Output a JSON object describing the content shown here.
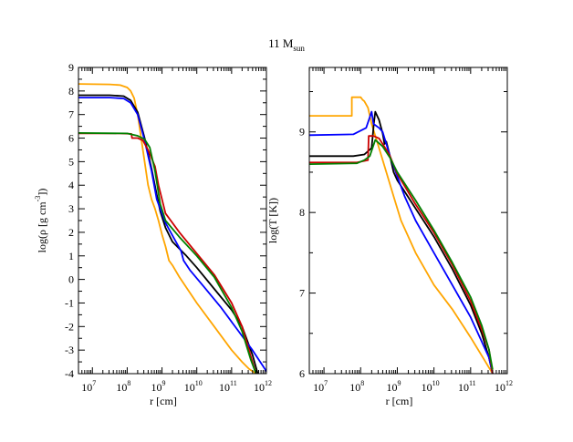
{
  "figure": {
    "title_main": "11 M",
    "title_sub": "sun"
  },
  "colors": {
    "orange": "#ffa500",
    "black": "#000000",
    "blue": "#0000ff",
    "red": "#cc0000",
    "green": "#008000"
  },
  "chart_data": [
    {
      "type": "line",
      "title": "11 M_sun",
      "xlabel": "r [cm]",
      "ylabel_parts": [
        "log(ρ [g cm",
        "-3",
        "])"
      ],
      "xscale": "log10",
      "xlim_log": [
        6.6,
        12
      ],
      "ylim": [
        -4,
        9
      ],
      "xticks": [
        {
          "exp": 7,
          "label": "10",
          "sup": "7"
        },
        {
          "exp": 8,
          "label": "10",
          "sup": "8"
        },
        {
          "exp": 9,
          "label": "10",
          "sup": "9"
        },
        {
          "exp": 10,
          "label": "10",
          "sup": "10"
        },
        {
          "exp": 11,
          "label": "10",
          "sup": "11"
        },
        {
          "exp": 12,
          "label": "10",
          "sup": "12"
        }
      ],
      "yticks": [
        -4,
        -3,
        -2,
        -1,
        0,
        1,
        2,
        3,
        4,
        5,
        6,
        7,
        8,
        9
      ],
      "series": [
        {
          "name": "orange",
          "color": "#ffa500",
          "points": [
            [
              6.6,
              8.3
            ],
            [
              7.5,
              8.28
            ],
            [
              7.8,
              8.25
            ],
            [
              8.0,
              8.15
            ],
            [
              8.1,
              8.0
            ],
            [
              8.2,
              7.7
            ],
            [
              8.3,
              7.0
            ],
            [
              8.45,
              5.5
            ],
            [
              8.6,
              4.0
            ],
            [
              8.7,
              3.4
            ],
            [
              8.8,
              3.0
            ],
            [
              8.9,
              2.5
            ],
            [
              9.0,
              1.9
            ],
            [
              9.1,
              1.4
            ],
            [
              9.2,
              0.8
            ],
            [
              9.3,
              0.6
            ],
            [
              9.5,
              0.1
            ],
            [
              10.0,
              -1.0
            ],
            [
              10.5,
              -2.0
            ],
            [
              11.0,
              -3.0
            ],
            [
              11.3,
              -3.5
            ],
            [
              11.5,
              -3.8
            ],
            [
              11.7,
              -4.0
            ]
          ]
        },
        {
          "name": "black",
          "color": "#000000",
          "points": [
            [
              6.6,
              7.82
            ],
            [
              7.5,
              7.82
            ],
            [
              7.9,
              7.78
            ],
            [
              8.1,
              7.6
            ],
            [
              8.3,
              7.1
            ],
            [
              8.5,
              6.0
            ],
            [
              8.7,
              4.7
            ],
            [
              8.85,
              3.6
            ],
            [
              8.95,
              2.9
            ],
            [
              9.1,
              2.2
            ],
            [
              9.3,
              1.6
            ],
            [
              9.7,
              1.0
            ],
            [
              10.0,
              0.5
            ],
            [
              10.5,
              -0.4
            ],
            [
              11.0,
              -1.3
            ],
            [
              11.3,
              -2.0
            ],
            [
              11.6,
              -3.2
            ],
            [
              11.75,
              -4.0
            ]
          ]
        },
        {
          "name": "blue",
          "color": "#0000ff",
          "points": [
            [
              6.6,
              7.72
            ],
            [
              7.5,
              7.72
            ],
            [
              7.9,
              7.68
            ],
            [
              8.1,
              7.5
            ],
            [
              8.3,
              7.0
            ],
            [
              8.5,
              5.9
            ],
            [
              8.7,
              4.6
            ],
            [
              8.85,
              3.4
            ],
            [
              8.95,
              3.0
            ],
            [
              9.1,
              2.4
            ],
            [
              9.25,
              2.0
            ],
            [
              9.55,
              1.2
            ],
            [
              9.62,
              0.8
            ],
            [
              9.8,
              0.4
            ],
            [
              10.2,
              -0.3
            ],
            [
              10.7,
              -1.2
            ],
            [
              11.2,
              -2.2
            ],
            [
              11.6,
              -3.0
            ],
            [
              12.0,
              -3.9
            ]
          ]
        },
        {
          "name": "red",
          "color": "#cc0000",
          "points": [
            [
              6.6,
              6.2
            ],
            [
              7.8,
              6.2
            ],
            [
              8.12,
              6.18
            ],
            [
              8.14,
              6.0
            ],
            [
              8.3,
              6.0
            ],
            [
              8.45,
              5.9
            ],
            [
              8.6,
              5.5
            ],
            [
              8.8,
              4.8
            ],
            [
              8.9,
              4.0
            ],
            [
              9.1,
              2.8
            ],
            [
              9.5,
              2.0
            ],
            [
              10.0,
              1.1
            ],
            [
              10.5,
              0.2
            ],
            [
              11.0,
              -1.0
            ],
            [
              11.3,
              -2.0
            ],
            [
              11.6,
              -3.5
            ],
            [
              11.7,
              -4.0
            ]
          ]
        },
        {
          "name": "green",
          "color": "#008000",
          "points": [
            [
              6.6,
              6.22
            ],
            [
              8.0,
              6.2
            ],
            [
              8.3,
              6.1
            ],
            [
              8.5,
              5.95
            ],
            [
              8.65,
              5.6
            ],
            [
              8.8,
              4.6
            ],
            [
              8.95,
              3.2
            ],
            [
              9.1,
              2.5
            ],
            [
              9.5,
              1.8
            ],
            [
              10.0,
              1.0
            ],
            [
              10.5,
              0.1
            ],
            [
              11.0,
              -1.2
            ],
            [
              11.3,
              -2.2
            ],
            [
              11.55,
              -3.4
            ],
            [
              11.7,
              -4.0
            ]
          ]
        }
      ]
    },
    {
      "type": "line",
      "title": "11 M_sun",
      "xlabel": "r [cm]",
      "ylabel": "log(T [K])",
      "xscale": "log10",
      "xlim_log": [
        6.6,
        12
      ],
      "ylim": [
        6,
        9.8
      ],
      "xticks": [
        {
          "exp": 7,
          "label": "10",
          "sup": "7"
        },
        {
          "exp": 8,
          "label": "10",
          "sup": "8"
        },
        {
          "exp": 9,
          "label": "10",
          "sup": "9"
        },
        {
          "exp": 10,
          "label": "10",
          "sup": "10"
        },
        {
          "exp": 11,
          "label": "10",
          "sup": "11"
        },
        {
          "exp": 12,
          "label": "10",
          "sup": "12"
        }
      ],
      "yticks": [
        6,
        7,
        8,
        9
      ],
      "series": [
        {
          "name": "orange",
          "color": "#ffa500",
          "points": [
            [
              6.6,
              9.2
            ],
            [
              7.76,
              9.2
            ],
            [
              7.76,
              9.43
            ],
            [
              8.0,
              9.43
            ],
            [
              8.05,
              9.4
            ],
            [
              8.1,
              9.38
            ],
            [
              8.2,
              9.3
            ],
            [
              8.3,
              9.1
            ],
            [
              8.5,
              8.8
            ],
            [
              8.7,
              8.5
            ],
            [
              8.9,
              8.2
            ],
            [
              9.1,
              7.9
            ],
            [
              9.5,
              7.5
            ],
            [
              10.0,
              7.1
            ],
            [
              10.5,
              6.8
            ],
            [
              11.0,
              6.45
            ],
            [
              11.4,
              6.15
            ],
            [
              11.6,
              6.0
            ]
          ]
        },
        {
          "name": "black",
          "color": "#000000",
          "points": [
            [
              6.6,
              8.7
            ],
            [
              7.8,
              8.7
            ],
            [
              8.1,
              8.72
            ],
            [
              8.3,
              8.8
            ],
            [
              8.36,
              9.1
            ],
            [
              8.4,
              9.25
            ],
            [
              8.5,
              9.15
            ],
            [
              8.6,
              8.98
            ],
            [
              8.65,
              8.85
            ],
            [
              8.7,
              8.88
            ],
            [
              8.8,
              8.7
            ],
            [
              8.9,
              8.5
            ],
            [
              9.0,
              8.4
            ],
            [
              9.5,
              8.05
            ],
            [
              10.0,
              7.7
            ],
            [
              10.5,
              7.3
            ],
            [
              11.0,
              6.85
            ],
            [
              11.3,
              6.5
            ],
            [
              11.5,
              6.2
            ],
            [
              11.6,
              6.0
            ]
          ]
        },
        {
          "name": "blue",
          "color": "#0000ff",
          "points": [
            [
              6.6,
              8.96
            ],
            [
              7.8,
              8.97
            ],
            [
              8.15,
              9.05
            ],
            [
              8.3,
              9.25
            ],
            [
              8.35,
              9.1
            ],
            [
              8.5,
              9.05
            ],
            [
              8.6,
              9.0
            ],
            [
              8.7,
              8.85
            ],
            [
              8.8,
              8.7
            ],
            [
              9.0,
              8.45
            ],
            [
              9.2,
              8.2
            ],
            [
              9.5,
              7.9
            ],
            [
              10.0,
              7.5
            ],
            [
              10.5,
              7.1
            ],
            [
              11.0,
              6.7
            ],
            [
              11.3,
              6.4
            ],
            [
              11.5,
              6.2
            ],
            [
              11.6,
              6.0
            ]
          ]
        },
        {
          "name": "red",
          "color": "#cc0000",
          "points": [
            [
              6.6,
              8.62
            ],
            [
              7.9,
              8.62
            ],
            [
              8.2,
              8.65
            ],
            [
              8.22,
              8.95
            ],
            [
              8.35,
              8.95
            ],
            [
              8.5,
              8.92
            ],
            [
              8.6,
              8.85
            ],
            [
              8.7,
              8.78
            ],
            [
              8.8,
              8.7
            ],
            [
              9.0,
              8.48
            ],
            [
              9.5,
              8.1
            ],
            [
              10.0,
              7.75
            ],
            [
              10.5,
              7.35
            ],
            [
              11.0,
              6.9
            ],
            [
              11.3,
              6.55
            ],
            [
              11.5,
              6.3
            ],
            [
              11.6,
              6.0
            ]
          ]
        },
        {
          "name": "green",
          "color": "#008000",
          "points": [
            [
              6.6,
              8.6
            ],
            [
              7.9,
              8.61
            ],
            [
              8.1,
              8.65
            ],
            [
              8.25,
              8.7
            ],
            [
              8.4,
              8.9
            ],
            [
              8.6,
              8.82
            ],
            [
              8.8,
              8.68
            ],
            [
              9.0,
              8.5
            ],
            [
              9.5,
              8.15
            ],
            [
              10.0,
              7.78
            ],
            [
              10.5,
              7.38
            ],
            [
              11.0,
              6.95
            ],
            [
              11.3,
              6.6
            ],
            [
              11.5,
              6.3
            ],
            [
              11.6,
              6.05
            ]
          ]
        }
      ]
    }
  ]
}
